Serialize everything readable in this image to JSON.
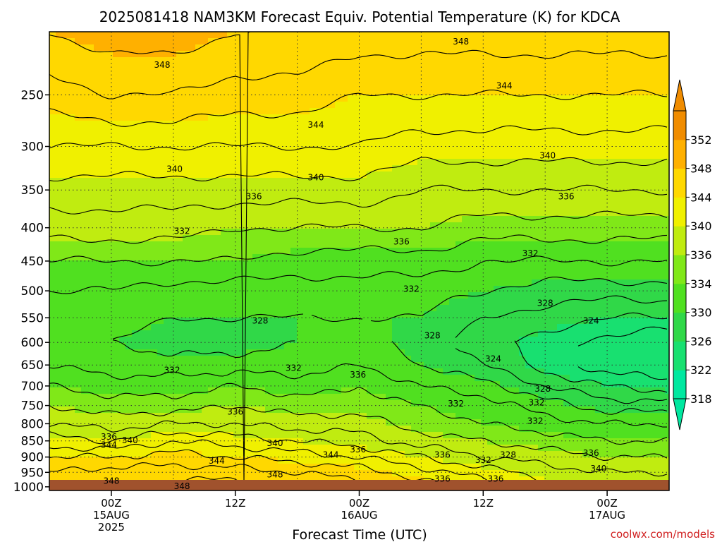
{
  "chart_data": {
    "type": "heatmap",
    "title": "2025081418 NAM3KM Forecast Equiv. Potential Temperature (K) for KDCA",
    "xlabel": "Forecast Time (UTC)",
    "ylabel": "",
    "credit": "coolwx.com/models",
    "y_scale": "log-pressure",
    "y_ticks": [
      250,
      300,
      350,
      400,
      450,
      500,
      550,
      600,
      650,
      700,
      750,
      800,
      850,
      900,
      950,
      1000
    ],
    "ylim": [
      1013,
      200
    ],
    "xlim_hours": [
      -5,
      45
    ],
    "x_ticks": [
      {
        "hour": 0,
        "lines": [
          "00Z",
          "15AUG",
          "2025"
        ]
      },
      {
        "hour": 10,
        "lines": [
          "12Z"
        ]
      },
      {
        "hour": 20,
        "lines": [
          "00Z",
          "16AUG"
        ]
      },
      {
        "hour": 30,
        "lines": [
          "12Z"
        ]
      },
      {
        "hour": 40,
        "lines": [
          "00Z",
          "17AUG"
        ]
      }
    ],
    "grid": true,
    "colorbar": {
      "levels": [
        318,
        322,
        326,
        330,
        334,
        336,
        340,
        344,
        348,
        352
      ],
      "colors": [
        "#00e8a0",
        "#18e070",
        "#30d848",
        "#50e020",
        "#80e818",
        "#c0ec10",
        "#f0f000",
        "#ffd800",
        "#ffb000",
        "#f08c00"
      ]
    },
    "profile_levels": [
      200,
      250,
      300,
      350,
      400,
      450,
      500,
      550,
      600,
      650,
      700,
      750,
      800,
      850,
      900,
      950,
      1000
    ],
    "profiles": [
      {
        "hour": -5,
        "values": [
          348,
          345,
          342,
          339,
          337,
          334,
          332,
          331,
          331,
          332,
          334,
          336,
          338,
          341,
          344,
          346,
          347
        ]
      },
      {
        "hour": 0,
        "values": [
          349,
          346,
          342,
          339,
          337,
          334,
          332,
          331,
          330,
          331,
          333,
          335,
          337,
          340,
          344,
          347,
          348
        ]
      },
      {
        "hour": 5,
        "values": [
          349,
          346,
          342,
          339,
          337,
          334,
          331,
          330,
          329,
          331,
          333,
          335,
          338,
          342,
          345,
          347,
          349
        ]
      },
      {
        "hour": 10,
        "values": [
          348,
          345,
          342,
          339,
          336,
          334,
          331,
          330,
          329,
          331,
          334,
          336,
          338,
          341,
          344,
          347,
          349
        ]
      },
      {
        "hour": 15,
        "values": [
          348,
          345,
          342,
          339,
          336,
          333,
          331,
          330,
          330,
          331,
          333,
          335,
          337,
          340,
          343,
          346,
          348
        ]
      },
      {
        "hour": 20,
        "values": [
          347,
          344,
          342,
          339,
          336,
          333,
          331,
          330,
          331,
          332,
          334,
          335,
          337,
          339,
          342,
          345,
          347
        ]
      },
      {
        "hour": 25,
        "values": [
          347,
          344,
          341,
          338,
          336,
          333,
          331,
          330,
          329,
          330,
          332,
          334,
          335,
          337,
          340,
          343,
          345
        ]
      },
      {
        "hour": 30,
        "values": [
          347,
          344,
          341,
          338,
          335,
          332,
          330,
          328,
          327,
          328,
          331,
          333,
          334,
          336,
          338,
          341,
          343
        ]
      },
      {
        "hour": 35,
        "values": [
          347,
          344,
          341,
          338,
          335,
          332,
          329,
          327,
          325,
          325,
          328,
          331,
          333,
          335,
          337,
          339,
          341
        ]
      },
      {
        "hour": 40,
        "values": [
          347,
          344,
          341,
          338,
          335,
          332,
          329,
          326,
          323,
          323,
          326,
          329,
          332,
          334,
          336,
          338,
          340
        ]
      },
      {
        "hour": 45,
        "values": [
          347,
          344,
          341,
          338,
          335,
          332,
          329,
          326,
          322,
          322,
          325,
          329,
          332,
          334,
          336,
          338,
          340
        ]
      }
    ],
    "contour_labels": [
      {
        "text": "348",
        "hour": 4.1,
        "p": 225
      },
      {
        "text": "348",
        "hour": 28.2,
        "p": 207
      },
      {
        "text": "344",
        "hour": 31.7,
        "p": 242
      },
      {
        "text": "344",
        "hour": 16.5,
        "p": 278
      },
      {
        "text": "340",
        "hour": 35.2,
        "p": 310
      },
      {
        "text": "340",
        "hour": 5.1,
        "p": 325
      },
      {
        "text": "340",
        "hour": 16.5,
        "p": 335
      },
      {
        "text": "336",
        "hour": 11.5,
        "p": 358
      },
      {
        "text": "336",
        "hour": 36.7,
        "p": 358
      },
      {
        "text": "336",
        "hour": 23.4,
        "p": 420
      },
      {
        "text": "332",
        "hour": 5.7,
        "p": 405
      },
      {
        "text": "332",
        "hour": 33.8,
        "p": 438
      },
      {
        "text": "332",
        "hour": 24.2,
        "p": 497
      },
      {
        "text": "328",
        "hour": 35.0,
        "p": 522
      },
      {
        "text": "328",
        "hour": 12.0,
        "p": 556
      },
      {
        "text": "328",
        "hour": 25.9,
        "p": 586
      },
      {
        "text": "324",
        "hour": 38.7,
        "p": 556
      },
      {
        "text": "324",
        "hour": 30.8,
        "p": 636
      },
      {
        "text": "332",
        "hour": 4.9,
        "p": 662
      },
      {
        "text": "332",
        "hour": 14.7,
        "p": 657
      },
      {
        "text": "336",
        "hour": 19.9,
        "p": 673
      },
      {
        "text": "328",
        "hour": 34.8,
        "p": 707
      },
      {
        "text": "332",
        "hour": 27.8,
        "p": 745
      },
      {
        "text": "332",
        "hour": 34.3,
        "p": 742
      },
      {
        "text": "336",
        "hour": 10.0,
        "p": 767
      },
      {
        "text": "332",
        "hour": 34.2,
        "p": 792
      },
      {
        "text": "336",
        "hour": -0.2,
        "p": 838
      },
      {
        "text": "340",
        "hour": 1.5,
        "p": 848
      },
      {
        "text": "344",
        "hour": -0.2,
        "p": 862
      },
      {
        "text": "340",
        "hour": 13.2,
        "p": 857
      },
      {
        "text": "336",
        "hour": 19.9,
        "p": 876
      },
      {
        "text": "344",
        "hour": 17.7,
        "p": 893
      },
      {
        "text": "336",
        "hour": 26.7,
        "p": 893
      },
      {
        "text": "332",
        "hour": 30.0,
        "p": 910
      },
      {
        "text": "328",
        "hour": 32.0,
        "p": 893
      },
      {
        "text": "336",
        "hour": 38.7,
        "p": 888
      },
      {
        "text": "344",
        "hour": 8.5,
        "p": 912
      },
      {
        "text": "348",
        "hour": 13.2,
        "p": 958
      },
      {
        "text": "340",
        "hour": 39.3,
        "p": 938
      },
      {
        "text": "336",
        "hour": 26.7,
        "p": 972
      },
      {
        "text": "336",
        "hour": 31.0,
        "p": 972
      },
      {
        "text": "348",
        "hour": 0,
        "p": 980
      },
      {
        "text": "348",
        "hour": 5.7,
        "p": 998
      }
    ]
  }
}
